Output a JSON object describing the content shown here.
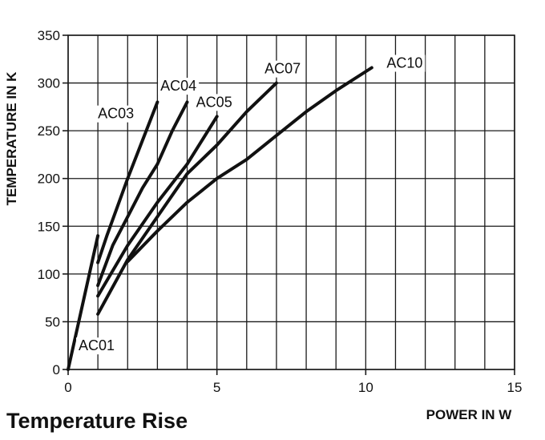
{
  "chart_data": {
    "type": "line",
    "title": "Temperature Rise",
    "xlabel": "POWER IN W",
    "ylabel": "TEMPERATURE IN K",
    "xlim": [
      0,
      15
    ],
    "ylim": [
      0,
      350
    ],
    "xticks": [
      0,
      5,
      10,
      15
    ],
    "yticks": [
      0,
      50,
      100,
      150,
      200,
      250,
      300,
      350
    ],
    "grid": true,
    "series": [
      {
        "name": "AC01",
        "points": [
          [
            0,
            0
          ],
          [
            1,
            140
          ]
        ]
      },
      {
        "name": "AC03",
        "points": [
          [
            1,
            112
          ],
          [
            1.3,
            140
          ],
          [
            2,
            200
          ],
          [
            2.5,
            240
          ],
          [
            3,
            280
          ]
        ]
      },
      {
        "name": "AC04",
        "points": [
          [
            1,
            88
          ],
          [
            1.5,
            130
          ],
          [
            2,
            160
          ],
          [
            2.5,
            190
          ],
          [
            3,
            215
          ],
          [
            3.5,
            250
          ],
          [
            4,
            280
          ]
        ]
      },
      {
        "name": "AC05",
        "points": [
          [
            1,
            77
          ],
          [
            2,
            130
          ],
          [
            3,
            175
          ],
          [
            4,
            215
          ],
          [
            4.5,
            240
          ],
          [
            5,
            265
          ]
        ]
      },
      {
        "name": "AC07",
        "points": [
          [
            1,
            58
          ],
          [
            2,
            115
          ],
          [
            3,
            160
          ],
          [
            4,
            205
          ],
          [
            5,
            235
          ],
          [
            6,
            270
          ],
          [
            7,
            300
          ]
        ]
      },
      {
        "name": "AC10",
        "points": [
          [
            2,
            113
          ],
          [
            3,
            145
          ],
          [
            4,
            175
          ],
          [
            5,
            200
          ],
          [
            6,
            220
          ],
          [
            7,
            245
          ],
          [
            8,
            270
          ],
          [
            9,
            292
          ],
          [
            10.2,
            316
          ]
        ]
      }
    ]
  }
}
